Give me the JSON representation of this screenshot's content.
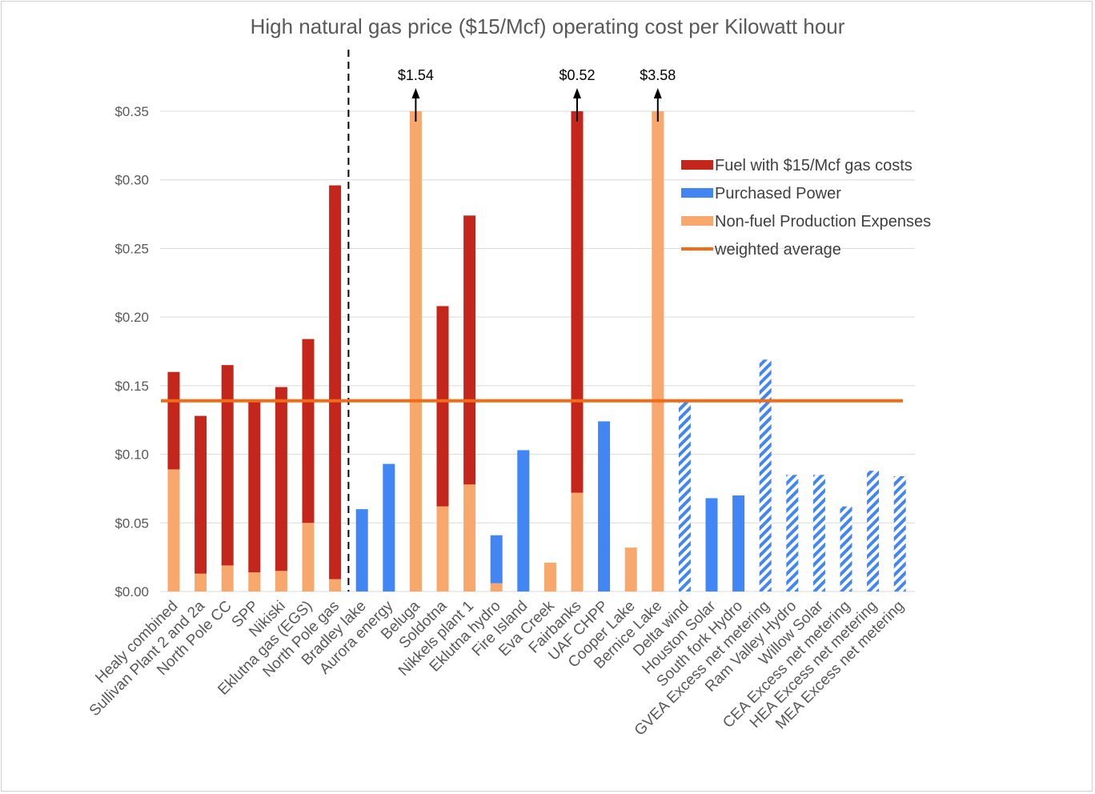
{
  "chart_data": {
    "type": "bar",
    "stacked": true,
    "title": "High natural gas price ($15/Mcf) operating cost per Kilowatt hour",
    "xlabel": "",
    "ylabel": "",
    "ylim": [
      0,
      0.35
    ],
    "yticks": [
      "$0.00",
      "$0.05",
      "$0.10",
      "$0.15",
      "$0.20",
      "$0.25",
      "$0.30",
      "$0.35"
    ],
    "ytick_values": [
      0,
      0.05,
      0.1,
      0.15,
      0.2,
      0.25,
      0.3,
      0.35
    ],
    "grid": true,
    "legend_position": "top-right",
    "categories": [
      "Healy combined",
      "Sullivan Plant 2 and 2a",
      "North Pole CC",
      "SPP",
      "Nikiski",
      "Eklutna gas (EGS)",
      "North Pole gas",
      "Bradley lake",
      "Aurora energy",
      "Beluga",
      "Soldotna",
      "Nikkels plant 1",
      "Eklutna hydro",
      "Fire Island",
      "Eva Creek",
      "Fairbanks",
      "UAF CHPP",
      "Cooper Lake",
      "Bernice Lake",
      "Delta wind",
      "Houston Solar",
      "South fork Hydro",
      "GVEA Excess net metering",
      "Ram Valley Hydro",
      "Willow Solar",
      "CEA Excess net metering",
      "HEA Excess net metering",
      "MEA Excess net metering"
    ],
    "series": [
      {
        "name": "Non-fuel Production Expenses",
        "color": "#F8A86C",
        "values": [
          0.089,
          0.013,
          0.019,
          0.014,
          0.015,
          0.05,
          0.009,
          0,
          0,
          0.35,
          0.062,
          0.078,
          0.006,
          0,
          0.021,
          0.072,
          0,
          0.032,
          0.35,
          0,
          0,
          0,
          0,
          0,
          0,
          0,
          0,
          0
        ]
      },
      {
        "name": "Fuel with $15/Mcf gas costs",
        "color": "#C4261B",
        "values": [
          0.071,
          0.115,
          0.146,
          0.124,
          0.134,
          0.134,
          0.287,
          0,
          0,
          0,
          0.146,
          0.196,
          0,
          0,
          0,
          0.278,
          0,
          0,
          0,
          0,
          0,
          0,
          0,
          0,
          0,
          0,
          0,
          0
        ]
      },
      {
        "name": "Purchased Power",
        "color": "#4285F4",
        "values": [
          0,
          0,
          0,
          0,
          0,
          0,
          0,
          0.06,
          0.093,
          0,
          0,
          0,
          0.035,
          0.103,
          0,
          0,
          0.124,
          0,
          0,
          0.14,
          0.068,
          0.07,
          0.169,
          0.085,
          0.085,
          0.062,
          0.088,
          0.084
        ]
      }
    ],
    "hatched": [
      false,
      false,
      false,
      false,
      false,
      false,
      false,
      false,
      false,
      false,
      false,
      false,
      false,
      false,
      false,
      false,
      false,
      false,
      false,
      true,
      false,
      false,
      true,
      true,
      true,
      true,
      true,
      true
    ],
    "weighted_average": {
      "name": "weighted average",
      "value": 0.139,
      "color": "#F26B16"
    },
    "divider_after": "North Pole gas",
    "annotations": [
      {
        "category": "Beluga",
        "label": "$1.54"
      },
      {
        "category": "Fairbanks",
        "label": "$0.52"
      },
      {
        "category": "Bernice Lake",
        "label": "$3.58"
      }
    ],
    "legend_order": [
      "Fuel with $15/Mcf gas costs",
      "Purchased Power",
      "Non-fuel Production Expenses",
      "weighted average"
    ],
    "legend_labels": [
      "Fuel with $15/Mcf gas costs",
      " Purchased Power",
      "Non-fuel Production Expenses",
      "weighted average"
    ]
  }
}
